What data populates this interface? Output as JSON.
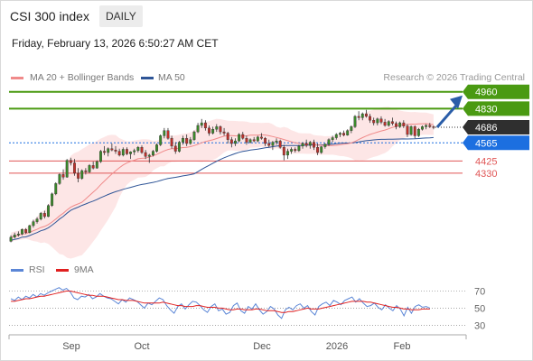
{
  "header": {
    "title": "CSI 300 index",
    "timeframe": "DAILY"
  },
  "timestamp": "Friday, February 13, 2026 6:50:27 AM CET",
  "legend": {
    "items": [
      {
        "label": "MA 20 + Bollinger Bands",
        "color": "#f08a8a"
      },
      {
        "label": "MA 50",
        "color": "#2f5597"
      }
    ],
    "credit": "Research © 2026 Trading Central"
  },
  "rsi_legend": {
    "items": [
      {
        "label": "RSI",
        "color": "#5b86d6"
      },
      {
        "label": "9MA",
        "color": "#e02020"
      }
    ]
  },
  "levels": [
    {
      "label": "4960",
      "value": 4960,
      "kind": "resistance"
    },
    {
      "label": "4830",
      "value": 4830,
      "kind": "resistance"
    },
    {
      "label": "4686",
      "value": 4686,
      "kind": "last"
    },
    {
      "label": "4565",
      "value": 4565,
      "kind": "pivot"
    },
    {
      "label": "4425",
      "value": 4425,
      "kind": "support"
    },
    {
      "label": "4330",
      "value": 4330,
      "kind": "support"
    }
  ],
  "colors": {
    "resistance": "#4a9a12",
    "last": "#2f2f2f",
    "pivot": "#1c6fe0",
    "support": "#e05555",
    "arrow": "#2a5da8",
    "candle_up": "#3a8a2a",
    "candle_down": "#c0302a",
    "band_fill": "#fde2e2"
  },
  "chart_data": [
    {
      "type": "candlestick",
      "x_ticks": [
        "Sep",
        "Oct",
        "Dec",
        "2026",
        "Feb"
      ],
      "ylim": [
        3680,
        5000
      ],
      "series": [
        {
          "name": "MA 20 + Bollinger Bands",
          "kind": "ma_band"
        },
        {
          "name": "MA 50",
          "kind": "ma"
        }
      ],
      "ohlc": [
        [
          3803,
          3850,
          3795,
          3835
        ],
        [
          3835,
          3870,
          3825,
          3852
        ],
        [
          3852,
          3880,
          3840,
          3860
        ],
        [
          3860,
          3902,
          3850,
          3895
        ],
        [
          3895,
          3905,
          3860,
          3870
        ],
        [
          3870,
          3930,
          3865,
          3925
        ],
        [
          3925,
          3970,
          3910,
          3955
        ],
        [
          3955,
          3990,
          3940,
          3975
        ],
        [
          3975,
          4030,
          3965,
          4020
        ],
        [
          4020,
          4040,
          3980,
          3995
        ],
        [
          3995,
          4090,
          3990,
          4080
        ],
        [
          4080,
          4180,
          4070,
          4170
        ],
        [
          4170,
          4260,
          4160,
          4250
        ],
        [
          4250,
          4330,
          4240,
          4320
        ],
        [
          4320,
          4360,
          4280,
          4300
        ],
        [
          4300,
          4440,
          4295,
          4430
        ],
        [
          4430,
          4450,
          4390,
          4410
        ],
        [
          4410,
          4440,
          4310,
          4330
        ],
        [
          4330,
          4370,
          4260,
          4290
        ],
        [
          4290,
          4360,
          4280,
          4350
        ],
        [
          4350,
          4370,
          4320,
          4340
        ],
        [
          4340,
          4400,
          4330,
          4390
        ],
        [
          4390,
          4420,
          4360,
          4370
        ],
        [
          4370,
          4430,
          4365,
          4420
        ],
        [
          4420,
          4510,
          4410,
          4500
        ],
        [
          4500,
          4540,
          4470,
          4490
        ],
        [
          4490,
          4530,
          4460,
          4520
        ],
        [
          4520,
          4560,
          4500,
          4510
        ],
        [
          4510,
          4540,
          4480,
          4500
        ],
        [
          4500,
          4520,
          4460,
          4470
        ],
        [
          4470,
          4530,
          4460,
          4515
        ],
        [
          4515,
          4530,
          4470,
          4480
        ],
        [
          4480,
          4500,
          4440,
          4495
        ],
        [
          4495,
          4520,
          4470,
          4505
        ],
        [
          4505,
          4540,
          4490,
          4530
        ],
        [
          4530,
          4545,
          4480,
          4490
        ],
        [
          4490,
          4510,
          4440,
          4460
        ],
        [
          4460,
          4480,
          4410,
          4470
        ],
        [
          4470,
          4510,
          4460,
          4500
        ],
        [
          4500,
          4560,
          4490,
          4550
        ],
        [
          4550,
          4630,
          4540,
          4620
        ],
        [
          4620,
          4680,
          4600,
          4660
        ],
        [
          4660,
          4680,
          4590,
          4600
        ],
        [
          4600,
          4620,
          4520,
          4540
        ],
        [
          4540,
          4570,
          4480,
          4500
        ],
        [
          4500,
          4580,
          4490,
          4570
        ],
        [
          4570,
          4620,
          4550,
          4600
        ],
        [
          4600,
          4630,
          4540,
          4560
        ],
        [
          4560,
          4610,
          4550,
          4590
        ],
        [
          4590,
          4660,
          4580,
          4650
        ],
        [
          4650,
          4720,
          4640,
          4700
        ],
        [
          4700,
          4750,
          4680,
          4720
        ],
        [
          4720,
          4740,
          4660,
          4680
        ],
        [
          4680,
          4700,
          4620,
          4640
        ],
        [
          4640,
          4690,
          4630,
          4670
        ],
        [
          4670,
          4710,
          4650,
          4690
        ],
        [
          4690,
          4700,
          4630,
          4650
        ],
        [
          4650,
          4680,
          4620,
          4640
        ],
        [
          4640,
          4650,
          4560,
          4590
        ],
        [
          4590,
          4610,
          4530,
          4560
        ],
        [
          4560,
          4600,
          4540,
          4580
        ],
        [
          4580,
          4640,
          4570,
          4630
        ],
        [
          4630,
          4650,
          4590,
          4600
        ],
        [
          4600,
          4620,
          4550,
          4570
        ],
        [
          4570,
          4600,
          4560,
          4590
        ],
        [
          4590,
          4610,
          4570,
          4580
        ],
        [
          4580,
          4620,
          4570,
          4610
        ],
        [
          4610,
          4640,
          4590,
          4600
        ],
        [
          4600,
          4610,
          4540,
          4560
        ],
        [
          4560,
          4590,
          4530,
          4545
        ],
        [
          4545,
          4580,
          4510,
          4570
        ],
        [
          4570,
          4600,
          4550,
          4580
        ],
        [
          4580,
          4590,
          4520,
          4530
        ],
        [
          4530,
          4550,
          4430,
          4470
        ],
        [
          4470,
          4520,
          4440,
          4500
        ],
        [
          4500,
          4530,
          4480,
          4515
        ],
        [
          4515,
          4530,
          4490,
          4505
        ],
        [
          4505,
          4550,
          4495,
          4540
        ],
        [
          4540,
          4570,
          4520,
          4560
        ],
        [
          4560,
          4590,
          4530,
          4545
        ],
        [
          4545,
          4580,
          4520,
          4570
        ],
        [
          4570,
          4590,
          4510,
          4530
        ],
        [
          4530,
          4560,
          4470,
          4490
        ],
        [
          4490,
          4540,
          4480,
          4535
        ],
        [
          4535,
          4560,
          4520,
          4555
        ],
        [
          4555,
          4600,
          4540,
          4590
        ],
        [
          4590,
          4620,
          4570,
          4605
        ],
        [
          4605,
          4640,
          4590,
          4630
        ],
        [
          4630,
          4650,
          4610,
          4640
        ],
        [
          4640,
          4660,
          4615,
          4625
        ],
        [
          4625,
          4670,
          4620,
          4660
        ],
        [
          4660,
          4700,
          4640,
          4690
        ],
        [
          4690,
          4780,
          4680,
          4770
        ],
        [
          4770,
          4810,
          4740,
          4760
        ],
        [
          4760,
          4800,
          4740,
          4790
        ],
        [
          4790,
          4820,
          4760,
          4770
        ],
        [
          4770,
          4790,
          4720,
          4740
        ],
        [
          4740,
          4760,
          4700,
          4720
        ],
        [
          4720,
          4760,
          4700,
          4750
        ],
        [
          4750,
          4770,
          4710,
          4725
        ],
        [
          4725,
          4750,
          4690,
          4700
        ],
        [
          4700,
          4740,
          4690,
          4730
        ],
        [
          4730,
          4760,
          4700,
          4715
        ],
        [
          4715,
          4730,
          4670,
          4690
        ],
        [
          4690,
          4730,
          4680,
          4720
        ],
        [
          4720,
          4740,
          4680,
          4695
        ],
        [
          4695,
          4710,
          4610,
          4630
        ],
        [
          4630,
          4700,
          4620,
          4690
        ],
        [
          4690,
          4700,
          4600,
          4620
        ],
        [
          4620,
          4680,
          4610,
          4670
        ],
        [
          4670,
          4700,
          4660,
          4690
        ],
        [
          4690,
          4710,
          4670,
          4700
        ],
        [
          4700,
          4720,
          4680,
          4690
        ],
        [
          4690,
          4700,
          4670,
          4686
        ]
      ],
      "rsi_ylim": [
        22,
        80
      ],
      "rsi_ticks": [
        "70",
        "50",
        "30"
      ],
      "rsi": [
        61,
        59,
        63,
        60,
        64,
        62,
        66,
        63,
        67,
        65,
        68,
        70,
        72,
        74,
        71,
        73,
        69,
        62,
        60,
        64,
        63,
        66,
        61,
        63,
        67,
        64,
        62,
        61,
        58,
        55,
        60,
        57,
        62,
        60,
        58,
        54,
        50,
        56,
        54,
        58,
        62,
        60,
        53,
        48,
        44,
        52,
        55,
        49,
        54,
        58,
        57,
        53,
        48,
        45,
        52,
        55,
        47,
        49,
        43,
        45,
        53,
        56,
        47,
        44,
        52,
        49,
        55,
        48,
        43,
        46,
        52,
        49,
        42,
        38,
        48,
        51,
        48,
        53,
        55,
        50,
        53,
        46,
        42,
        52,
        55,
        57,
        53,
        59,
        57,
        54,
        59,
        61,
        63,
        57,
        61,
        56,
        52,
        53,
        56,
        51,
        48,
        54,
        50,
        47,
        53,
        49,
        41,
        51,
        44,
        52,
        54,
        51,
        52,
        50
      ],
      "rsi_ma": [
        58,
        58,
        59,
        60,
        61,
        61,
        62,
        63,
        64,
        64,
        65,
        66,
        67,
        68,
        69,
        70,
        70,
        69,
        68,
        67,
        66,
        65,
        65,
        64,
        64,
        64,
        63,
        62,
        61,
        60,
        60,
        59,
        59,
        59,
        58,
        57,
        56,
        56,
        56,
        56,
        56,
        57,
        56,
        55,
        54,
        53,
        53,
        52,
        52,
        52,
        53,
        53,
        52,
        51,
        51,
        51,
        50,
        50,
        49,
        48,
        48,
        49,
        49,
        48,
        48,
        48,
        49,
        49,
        48,
        47,
        47,
        47,
        46,
        45,
        45,
        46,
        46,
        47,
        48,
        49,
        50,
        49,
        49,
        49,
        50,
        51,
        52,
        53,
        54,
        55,
        56,
        57,
        58,
        58,
        58,
        58,
        57,
        57,
        56,
        55,
        54,
        53,
        52,
        51,
        51,
        50,
        49,
        49,
        48,
        48,
        48,
        49,
        49,
        49
      ]
    }
  ]
}
